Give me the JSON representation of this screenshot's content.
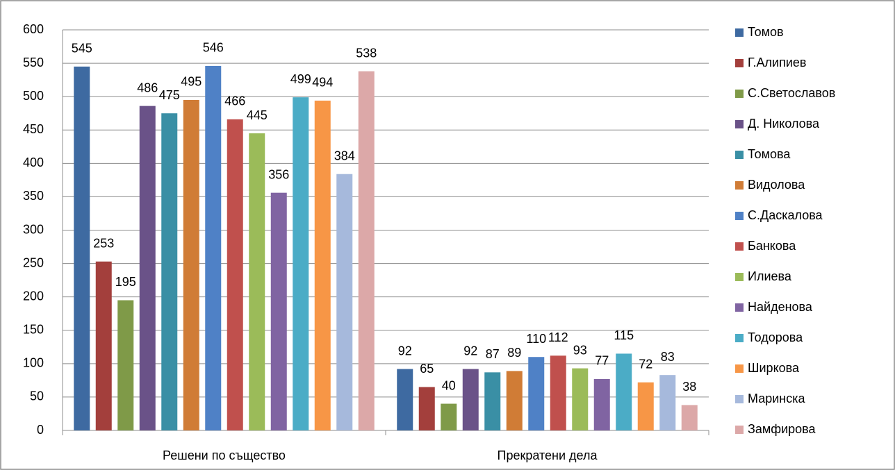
{
  "chart_data": {
    "type": "bar",
    "categories": [
      "Решени по същество",
      "Прекратени дела"
    ],
    "ylim": [
      0,
      600
    ],
    "yticks": [
      0,
      50,
      100,
      150,
      200,
      250,
      300,
      350,
      400,
      450,
      500,
      550,
      600
    ],
    "grid": true,
    "legend": "right",
    "series": [
      {
        "name": "Томов",
        "color": "#3e6aa1",
        "values": [
          545,
          92
        ]
      },
      {
        "name": "Г.Алипиев",
        "color": "#a33f3c",
        "values": [
          253,
          65
        ]
      },
      {
        "name": "С.Светославов",
        "color": "#7f9a48",
        "values": [
          195,
          40
        ]
      },
      {
        "name": "Д. Николова",
        "color": "#6a5288",
        "values": [
          486,
          92
        ]
      },
      {
        "name": "Томова",
        "color": "#3a8fa5",
        "values": [
          475,
          87
        ]
      },
      {
        "name": "Видолова",
        "color": "#d07c36",
        "values": [
          495,
          89
        ]
      },
      {
        "name": "С.Даскалова",
        "color": "#4f81c6",
        "values": [
          546,
          110
        ]
      },
      {
        "name": "Банкова",
        "color": "#c0504d",
        "values": [
          466,
          112
        ]
      },
      {
        "name": "Илиева",
        "color": "#9bbb59",
        "values": [
          445,
          93
        ]
      },
      {
        "name": "Найденова",
        "color": "#8064a2",
        "values": [
          356,
          77
        ]
      },
      {
        "name": "Тодорова",
        "color": "#4bacc6",
        "values": [
          499,
          115
        ]
      },
      {
        "name": "Ширкова",
        "color": "#f79646",
        "values": [
          494,
          72
        ]
      },
      {
        "name": "Маринска",
        "color": "#a6b9dc",
        "values": [
          384,
          83
        ]
      },
      {
        "name": "Замфирова",
        "color": "#dca8a8",
        "values": [
          538,
          38
        ]
      }
    ]
  }
}
